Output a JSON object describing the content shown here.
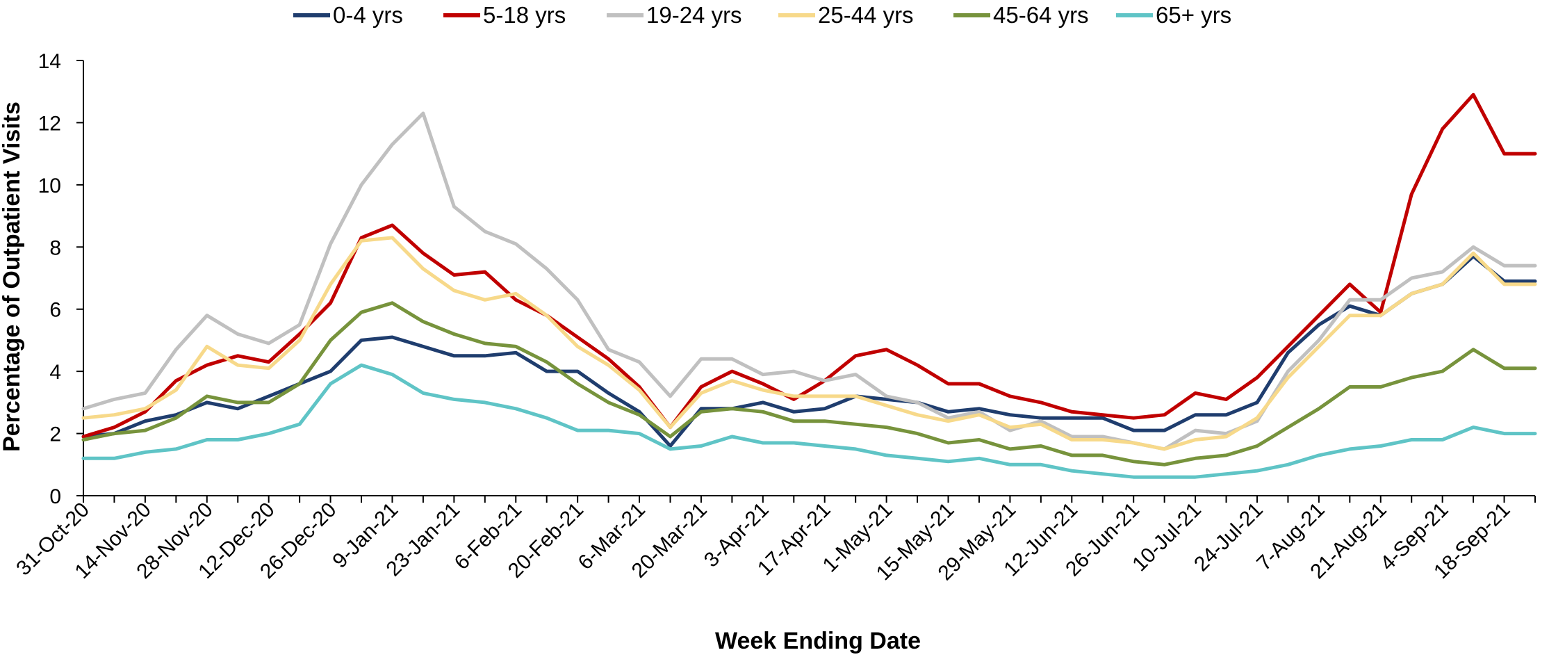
{
  "chart_data": {
    "type": "line",
    "title": "",
    "xlabel": "Week Ending Date",
    "ylabel": "Percentage of Outpatient Visits",
    "ylim": [
      0,
      14
    ],
    "yticks": [
      0,
      2,
      4,
      6,
      8,
      10,
      12,
      14
    ],
    "grid": false,
    "legend_position": "top",
    "x": [
      "31-Oct-20",
      "7-Nov-20",
      "14-Nov-20",
      "21-Nov-20",
      "28-Nov-20",
      "5-Dec-20",
      "12-Dec-20",
      "19-Dec-20",
      "26-Dec-20",
      "2-Jan-21",
      "9-Jan-21",
      "16-Jan-21",
      "23-Jan-21",
      "30-Jan-21",
      "6-Feb-21",
      "13-Feb-21",
      "20-Feb-21",
      "27-Feb-21",
      "6-Mar-21",
      "13-Mar-21",
      "20-Mar-21",
      "27-Mar-21",
      "3-Apr-21",
      "10-Apr-21",
      "17-Apr-21",
      "24-Apr-21",
      "1-May-21",
      "8-May-21",
      "15-May-21",
      "22-May-21",
      "29-May-21",
      "5-Jun-21",
      "12-Jun-21",
      "19-Jun-21",
      "26-Jun-21",
      "3-Jul-21",
      "10-Jul-21",
      "17-Jul-21",
      "24-Jul-21",
      "31-Jul-21",
      "7-Aug-21",
      "14-Aug-21",
      "21-Aug-21",
      "28-Aug-21",
      "4-Sep-21",
      "11-Sep-21",
      "18-Sep-21",
      "25-Sep-21"
    ],
    "xtick_labels": [
      "31-Oct-20",
      "14-Nov-20",
      "28-Nov-20",
      "12-Dec-20",
      "26-Dec-20",
      "9-Jan-21",
      "23-Jan-21",
      "6-Feb-21",
      "20-Feb-21",
      "6-Mar-21",
      "20-Mar-21",
      "3-Apr-21",
      "17-Apr-21",
      "1-May-21",
      "15-May-21",
      "29-May-21",
      "12-Jun-21",
      "26-Jun-21",
      "10-Jul-21",
      "24-Jul-21",
      "7-Aug-21",
      "21-Aug-21",
      "4-Sep-21",
      "18-Sep-21"
    ],
    "series": [
      {
        "name": "0-4 yrs",
        "color": "#1f3d6e",
        "values": [
          1.9,
          2.0,
          2.4,
          2.6,
          3.0,
          2.8,
          3.2,
          3.6,
          4.0,
          5.0,
          5.1,
          4.8,
          4.5,
          4.5,
          4.6,
          4.0,
          4.0,
          3.3,
          2.7,
          1.6,
          2.8,
          2.8,
          3.0,
          2.7,
          2.8,
          3.2,
          3.1,
          3.0,
          2.7,
          2.8,
          2.6,
          2.5,
          2.5,
          2.5,
          2.1,
          2.1,
          2.6,
          2.6,
          3.0,
          4.6,
          5.5,
          6.1,
          5.8,
          6.5,
          6.8,
          7.7,
          6.9,
          6.9
        ]
      },
      {
        "name": "5-18 yrs",
        "color": "#c00000",
        "values": [
          1.9,
          2.2,
          2.7,
          3.7,
          4.2,
          4.5,
          4.3,
          5.2,
          6.2,
          8.3,
          8.7,
          7.8,
          7.1,
          7.2,
          6.3,
          5.8,
          5.1,
          4.4,
          3.5,
          2.2,
          3.5,
          4.0,
          3.6,
          3.1,
          3.7,
          4.5,
          4.7,
          4.2,
          3.6,
          3.6,
          3.2,
          3.0,
          2.7,
          2.6,
          2.5,
          2.6,
          3.3,
          3.1,
          3.8,
          4.8,
          5.8,
          6.8,
          5.9,
          9.7,
          11.8,
          12.9,
          11.0,
          11.0
        ]
      },
      {
        "name": "19-24 yrs",
        "color": "#c0c0c0",
        "values": [
          2.8,
          3.1,
          3.3,
          4.7,
          5.8,
          5.2,
          4.9,
          5.5,
          8.1,
          10.0,
          11.3,
          12.3,
          9.3,
          8.5,
          8.1,
          7.3,
          6.3,
          4.7,
          4.3,
          3.2,
          4.4,
          4.4,
          3.9,
          4.0,
          3.7,
          3.9,
          3.2,
          3.0,
          2.5,
          2.7,
          2.1,
          2.4,
          1.9,
          1.9,
          1.7,
          1.5,
          2.1,
          2.0,
          2.4,
          4.0,
          5.0,
          6.3,
          6.3,
          7.0,
          7.2,
          8.0,
          7.4,
          7.4
        ]
      },
      {
        "name": "25-44 yrs",
        "color": "#f7d98a",
        "values": [
          2.5,
          2.6,
          2.8,
          3.4,
          4.8,
          4.2,
          4.1,
          5.0,
          6.8,
          8.2,
          8.3,
          7.3,
          6.6,
          6.3,
          6.5,
          5.8,
          4.8,
          4.2,
          3.4,
          2.2,
          3.3,
          3.7,
          3.4,
          3.2,
          3.2,
          3.2,
          2.9,
          2.6,
          2.4,
          2.6,
          2.2,
          2.3,
          1.8,
          1.8,
          1.7,
          1.5,
          1.8,
          1.9,
          2.5,
          3.8,
          4.8,
          5.8,
          5.8,
          6.5,
          6.8,
          7.8,
          6.8,
          6.8
        ]
      },
      {
        "name": "45-64 yrs",
        "color": "#77933c",
        "values": [
          1.8,
          2.0,
          2.1,
          2.5,
          3.2,
          3.0,
          3.0,
          3.6,
          5.0,
          5.9,
          6.2,
          5.6,
          5.2,
          4.9,
          4.8,
          4.3,
          3.6,
          3.0,
          2.6,
          1.9,
          2.7,
          2.8,
          2.7,
          2.4,
          2.4,
          2.3,
          2.2,
          2.0,
          1.7,
          1.8,
          1.5,
          1.6,
          1.3,
          1.3,
          1.1,
          1.0,
          1.2,
          1.3,
          1.6,
          2.2,
          2.8,
          3.5,
          3.5,
          3.8,
          4.0,
          4.7,
          4.1,
          4.1
        ]
      },
      {
        "name": "65+ yrs",
        "color": "#5fc4c6",
        "values": [
          1.2,
          1.2,
          1.4,
          1.5,
          1.8,
          1.8,
          2.0,
          2.3,
          3.6,
          4.2,
          3.9,
          3.3,
          3.1,
          3.0,
          2.8,
          2.5,
          2.1,
          2.1,
          2.0,
          1.5,
          1.6,
          1.9,
          1.7,
          1.7,
          1.6,
          1.5,
          1.3,
          1.2,
          1.1,
          1.2,
          1.0,
          1.0,
          0.8,
          0.7,
          0.6,
          0.6,
          0.6,
          0.7,
          0.8,
          1.0,
          1.3,
          1.5,
          1.6,
          1.8,
          1.8,
          2.2,
          2.0,
          2.0
        ]
      }
    ]
  }
}
